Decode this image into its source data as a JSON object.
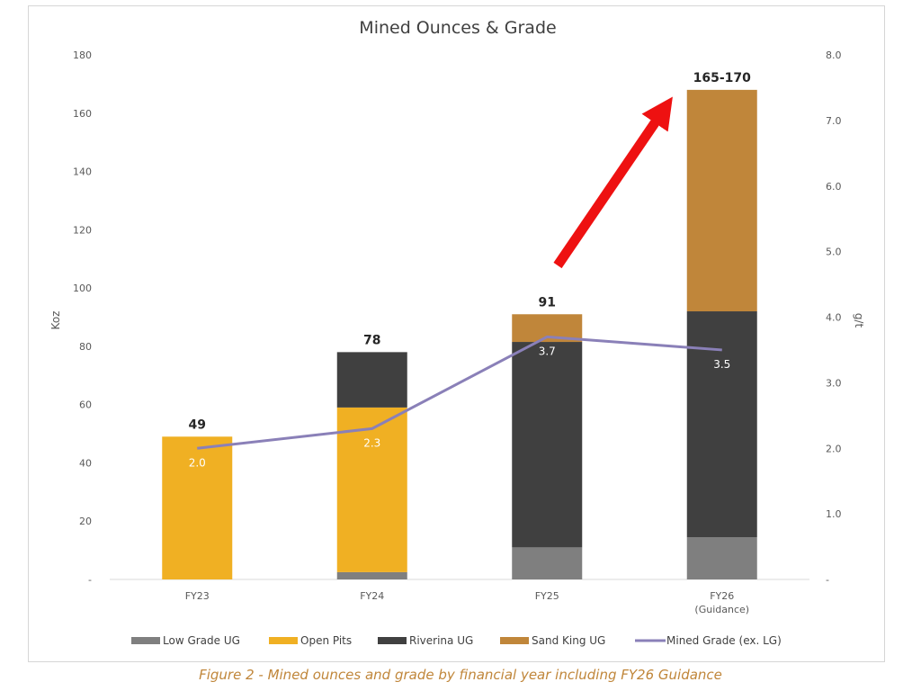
{
  "figure_caption": "Figure 2 - Mined ounces and grade by financial year including FY26 Guidance",
  "colors": {
    "low_grade_ug": "#7f7f7f",
    "open_pits": "#f0b023",
    "riverina_ug": "#404040",
    "sand_king_ug": "#c0863a",
    "mined_grade_line": "#8a80b8",
    "arrow": "#ee1111",
    "caption": "#c0863a"
  },
  "chart_data": {
    "type": "bar",
    "stacked": true,
    "title": "Mined Ounces & Grade",
    "ylabel": "Koz",
    "y2label": "g/t",
    "ylim": [
      0,
      180
    ],
    "y2lim": [
      0,
      8
    ],
    "yticks": [
      "-",
      "20",
      "40",
      "60",
      "80",
      "100",
      "120",
      "140",
      "160",
      "180"
    ],
    "y2ticks": [
      "-",
      "1.0",
      "2.0",
      "3.0",
      "4.0",
      "5.0",
      "6.0",
      "7.0",
      "8.0"
    ],
    "categories": [
      "FY23",
      "FY24",
      "FY25",
      "FY26\n(Guidance)"
    ],
    "series": [
      {
        "name": "Low Grade UG",
        "values": [
          0,
          2.5,
          11,
          14.5
        ]
      },
      {
        "name": "Open Pits",
        "values": [
          49,
          56.5,
          0,
          0
        ]
      },
      {
        "name": "Riverina UG",
        "values": [
          0,
          19,
          70.5,
          77.5
        ]
      },
      {
        "name": "Sand King UG",
        "values": [
          0,
          0,
          9.5,
          76
        ]
      }
    ],
    "totals_labels": [
      "49",
      "78",
      "91",
      "165-170"
    ],
    "line_series": {
      "name": "Mined Grade (ex. LG)",
      "axis": "right",
      "values": [
        2.0,
        2.3,
        3.7,
        3.5
      ],
      "labels": [
        "2.0",
        "2.3",
        "3.7",
        "3.5"
      ]
    },
    "legend_position": "bottom",
    "annotation": "red upward arrow pointing to FY26 bar"
  }
}
